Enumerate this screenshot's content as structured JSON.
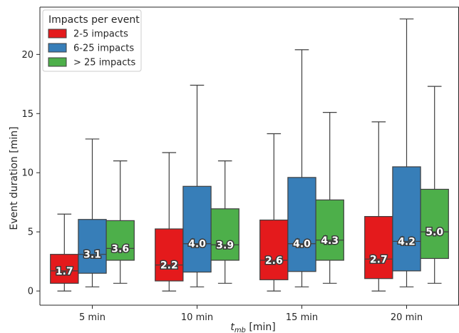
{
  "chart_data": {
    "type": "boxplot",
    "xlabel_main": "t",
    "xlabel_sub": "mb",
    "xlabel_unit": " [min]",
    "ylabel": "Event duration [min]",
    "categories": [
      "5 min",
      "10 min",
      "15 min",
      "20 min"
    ],
    "ylim": [
      -1.2,
      24
    ],
    "yticks": [
      0,
      5,
      10,
      15,
      20
    ],
    "grid": false,
    "legend": {
      "title": "Impacts per event",
      "placement": "top-left",
      "entries": [
        "2-5 impacts",
        "6-25 impacts",
        "> 25 impacts"
      ]
    },
    "series": [
      {
        "name": "2-5 impacts",
        "color": "#e41a1c",
        "boxes": [
          {
            "whislo": 0.0,
            "q1": 0.65,
            "med": 1.7,
            "q3": 3.1,
            "whishi": 6.5,
            "label": "1.7"
          },
          {
            "whislo": 0.0,
            "q1": 0.85,
            "med": 2.2,
            "q3": 5.25,
            "whishi": 11.7,
            "label": "2.2"
          },
          {
            "whislo": 0.0,
            "q1": 0.95,
            "med": 2.6,
            "q3": 6.0,
            "whishi": 13.3,
            "label": "2.6"
          },
          {
            "whislo": 0.0,
            "q1": 1.05,
            "med": 2.7,
            "q3": 6.3,
            "whishi": 14.3,
            "label": "2.7"
          }
        ]
      },
      {
        "name": "6-25 impacts",
        "color": "#377eb8",
        "boxes": [
          {
            "whislo": 0.35,
            "q1": 1.5,
            "med": 3.1,
            "q3": 6.05,
            "whishi": 12.85,
            "label": "3.1"
          },
          {
            "whislo": 0.35,
            "q1": 1.6,
            "med": 4.0,
            "q3": 8.85,
            "whishi": 17.4,
            "label": "4.0"
          },
          {
            "whislo": 0.35,
            "q1": 1.65,
            "med": 4.0,
            "q3": 9.6,
            "whishi": 20.4,
            "label": "4.0"
          },
          {
            "whislo": 0.35,
            "q1": 1.7,
            "med": 4.2,
            "q3": 10.5,
            "whishi": 23.0,
            "label": "4.2"
          }
        ]
      },
      {
        "name": "> 25 impacts",
        "color": "#4daf4a",
        "boxes": [
          {
            "whislo": 0.65,
            "q1": 2.6,
            "med": 3.6,
            "q3": 5.95,
            "whishi": 11.0,
            "label": "3.6"
          },
          {
            "whislo": 0.65,
            "q1": 2.6,
            "med": 3.9,
            "q3": 6.95,
            "whishi": 11.0,
            "label": "3.9"
          },
          {
            "whislo": 0.65,
            "q1": 2.6,
            "med": 4.3,
            "q3": 7.7,
            "whishi": 15.1,
            "label": "4.3"
          },
          {
            "whislo": 0.65,
            "q1": 2.75,
            "med": 5.0,
            "q3": 8.6,
            "whishi": 17.3,
            "label": "5.0"
          }
        ]
      }
    ]
  }
}
